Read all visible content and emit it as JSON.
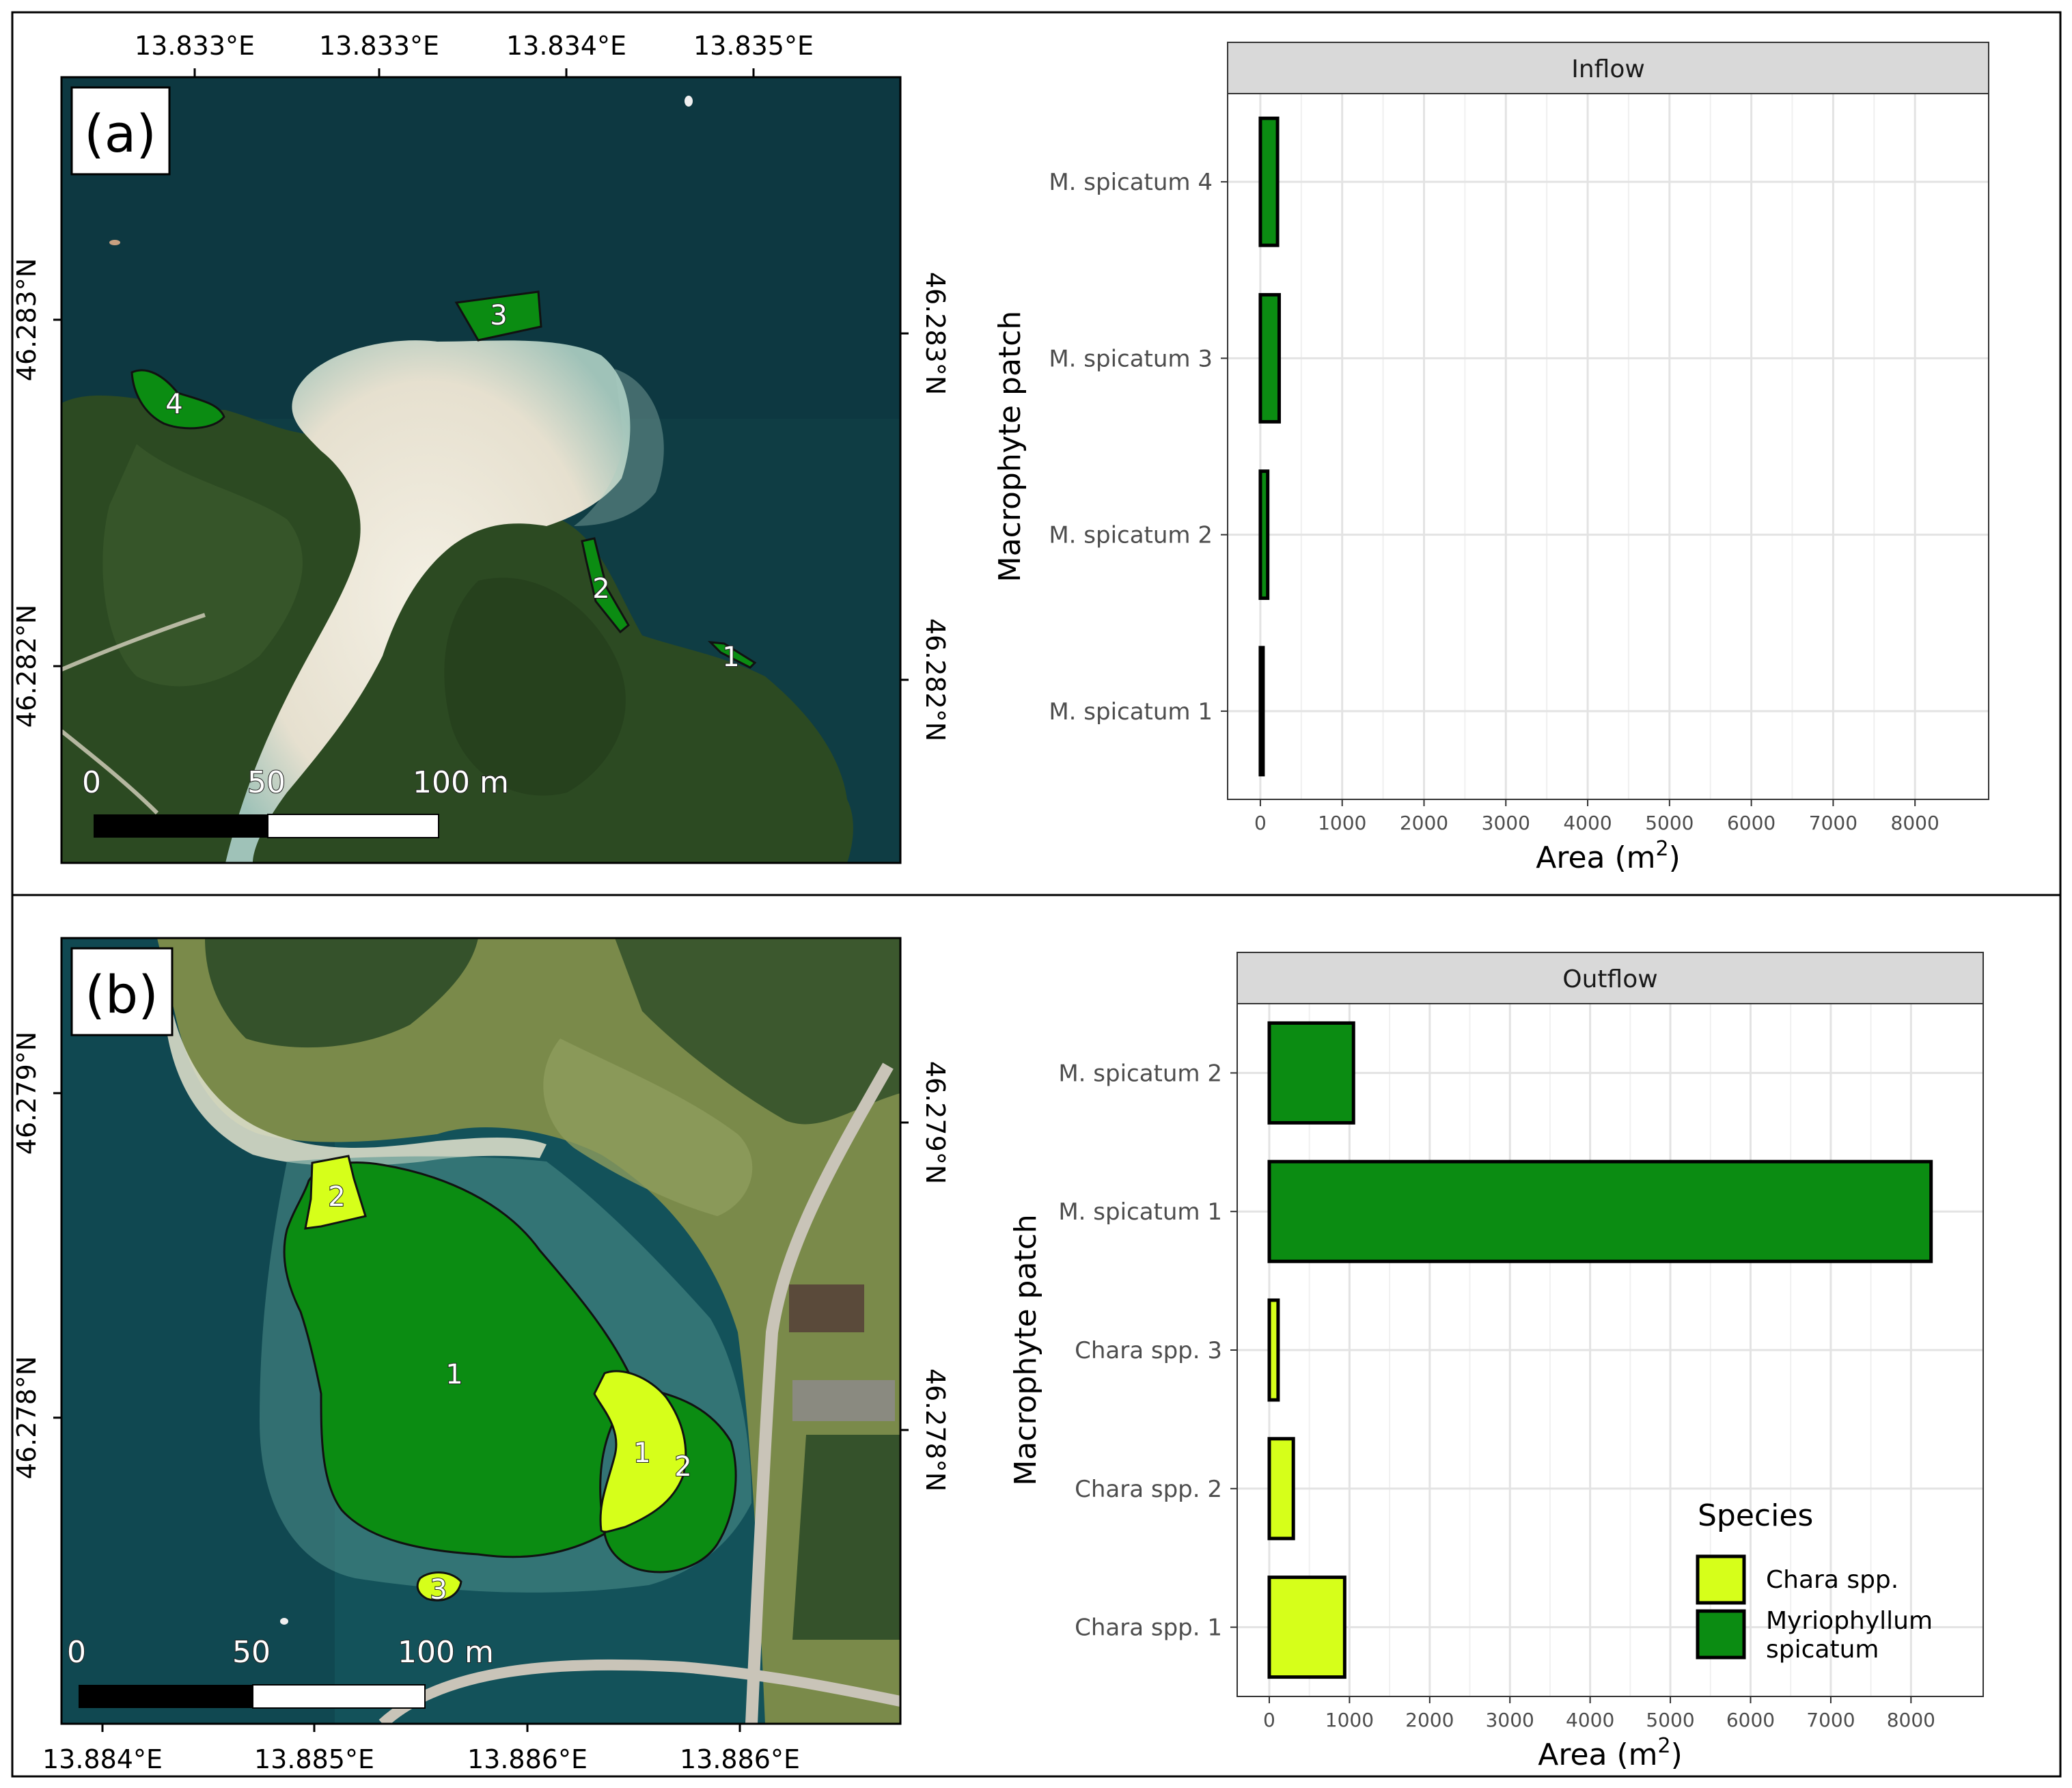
{
  "panels": [
    {
      "id": "a",
      "label": "(a)",
      "map": {
        "lon_ticks": [
          "13.833°E",
          "13.833°E",
          "13.834°E",
          "13.835°E"
        ],
        "lat_ticks": [
          "46.283°N",
          "46.282°N"
        ],
        "patch_labels": [
          "1",
          "2",
          "3",
          "4"
        ],
        "scale": {
          "zero": "0",
          "mid": "50",
          "end": "100 m"
        },
        "colors": {
          "water": "#0f3d44",
          "forest": "#2c4a22",
          "beach": "#ece6d6",
          "patch": "#0b8c12"
        }
      }
    },
    {
      "id": "b",
      "label": "(b)",
      "map": {
        "lon_ticks": [
          "13.884°E",
          "13.885°E",
          "13.886°E",
          "13.886°E"
        ],
        "lat_ticks": [
          "46.279°N",
          "46.278°N"
        ],
        "patch_labels": [
          "1",
          "2",
          "3",
          "1",
          "2"
        ],
        "scale": {
          "zero": "0",
          "mid": "50",
          "end": "100 m"
        },
        "colors": {
          "water": "#13525a",
          "grass": "#7a8a4a",
          "forest": "#35522b",
          "myrio": "#0b8c12",
          "chara": "#d6ff1a"
        }
      }
    }
  ],
  "chart_data": [
    {
      "type": "bar",
      "orientation": "horizontal",
      "panel": "a",
      "facet": "Inflow",
      "categories": [
        "M. spicatum 1",
        "M. spicatum 2",
        "M. spicatum 3",
        "M. spicatum 4"
      ],
      "series": [
        {
          "species": "Myriophyllum spicatum",
          "values": [
            10,
            90,
            230,
            210
          ]
        }
      ],
      "xlabel": "Area (m",
      "xlabel_sup": "2",
      "xlabel_end": ")",
      "ylabel": "Macrophyte patch",
      "xlim": [
        -400,
        8900
      ],
      "xticks": [
        0,
        1000,
        2000,
        3000,
        4000,
        5000,
        6000,
        7000,
        8000
      ],
      "grid": true
    },
    {
      "type": "bar",
      "orientation": "horizontal",
      "panel": "b",
      "facet": "Outflow",
      "categories": [
        "Chara spp. 1",
        "Chara spp. 2",
        "Chara spp. 3",
        "M. spicatum 1",
        "M. spicatum 2"
      ],
      "series": [
        {
          "species": "Chara spp.",
          "values": [
            940,
            300,
            110,
            null,
            null
          ]
        },
        {
          "species": "Myriophyllum spicatum",
          "values": [
            null,
            null,
            null,
            8250,
            1050
          ]
        }
      ],
      "xlabel": "Area (m",
      "xlabel_sup": "2",
      "xlabel_end": ")",
      "ylabel": "Macrophyte patch",
      "xlim": [
        -400,
        8900
      ],
      "xticks": [
        0,
        1000,
        2000,
        3000,
        4000,
        5000,
        6000,
        7000,
        8000
      ],
      "grid": true,
      "legend": {
        "title": "Species",
        "position": "bottom-right",
        "entries": [
          {
            "lines": [
              "Chara spp."
            ],
            "color": "#d6ff1a"
          },
          {
            "lines": [
              "Myriophyllum",
              "spicatum"
            ],
            "color": "#0b8c12"
          }
        ]
      }
    }
  ]
}
